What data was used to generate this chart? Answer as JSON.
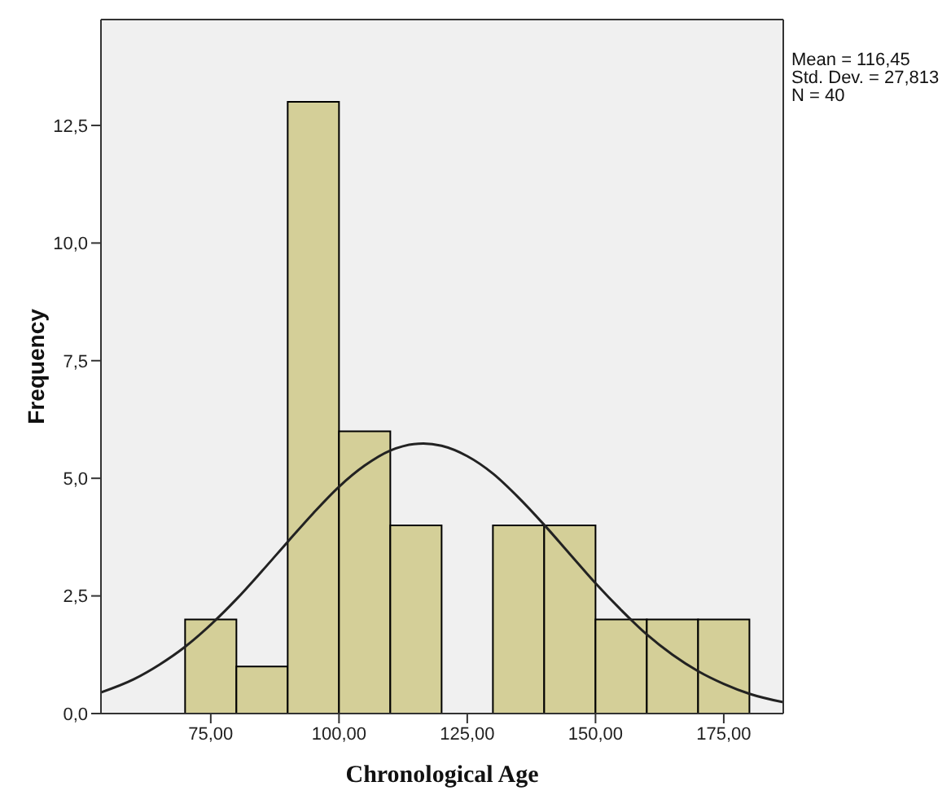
{
  "chart_data": {
    "type": "histogram",
    "xlabel": "Chronological Age",
    "ylabel": "Frequency",
    "bins": [
      70,
      80,
      90,
      100,
      110,
      120,
      130,
      140,
      150,
      160,
      170,
      180
    ],
    "values": [
      2,
      1,
      13,
      6,
      4,
      0,
      4,
      4,
      2,
      2,
      2
    ],
    "color": "#d4cf98",
    "series": [
      {
        "type": "line",
        "color": "#222222",
        "x": [
          53.6,
          60,
          65,
          70,
          75,
          80,
          85,
          90,
          95,
          100,
          105,
          110,
          116.45,
          120,
          125,
          130,
          135,
          140,
          145,
          150,
          155,
          160,
          165,
          170,
          175,
          180,
          186.6
        ],
        "values": [
          0.45,
          0.73,
          1.04,
          1.42,
          1.89,
          2.43,
          3.03,
          3.65,
          4.26,
          4.82,
          5.27,
          5.59,
          5.74,
          5.69,
          5.47,
          5.1,
          4.59,
          4.01,
          3.39,
          2.77,
          2.2,
          1.68,
          1.25,
          0.9,
          0.63,
          0.42,
          0.24
        ]
      }
    ],
    "xlim": [
      53.6,
      186.6
    ],
    "ylim": [
      0,
      14.75
    ],
    "xticks": [
      {
        "value": 75,
        "label": "75,00"
      },
      {
        "value": 100,
        "label": "100,00"
      },
      {
        "value": 125,
        "label": "125,00"
      },
      {
        "value": 150,
        "label": "150,00"
      },
      {
        "value": 175,
        "label": "175,00"
      }
    ],
    "yticks": [
      {
        "value": 0,
        "label": "0,0"
      },
      {
        "value": 2.5,
        "label": "2,5"
      },
      {
        "value": 5,
        "label": "5,0"
      },
      {
        "value": 7.5,
        "label": "7,5"
      },
      {
        "value": 10,
        "label": "10,0"
      },
      {
        "value": 12.5,
        "label": "12,5"
      }
    ],
    "annotations": [
      "Mean = 116,45",
      "Std. Dev. = 27,813",
      "N = 40"
    ],
    "grid": false,
    "legend": false,
    "marker": "none",
    "line_style": "solid"
  }
}
